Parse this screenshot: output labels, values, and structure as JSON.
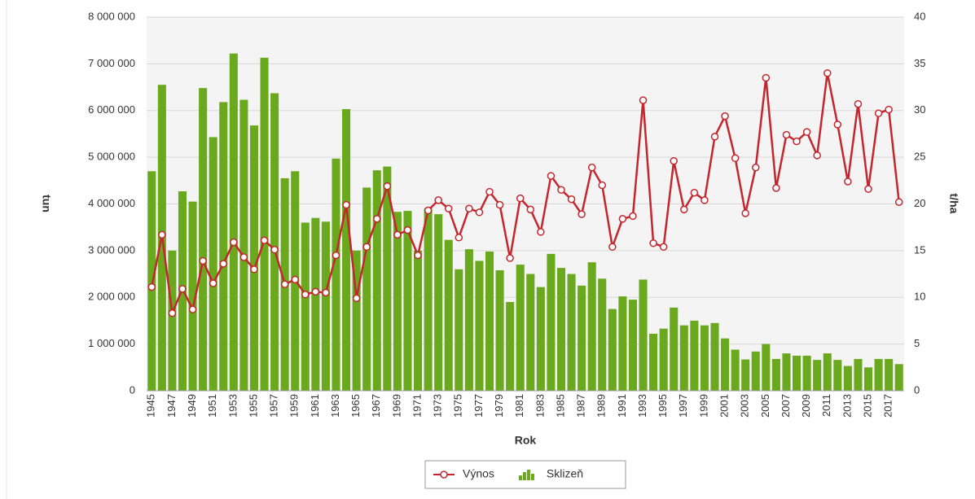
{
  "chart_data": {
    "type": "combo",
    "x_label": "Rok",
    "y_label": "tun",
    "y2_label": "t/ha",
    "categories": [
      "1945",
      null,
      "1947",
      null,
      "1949",
      null,
      "1951",
      null,
      "1953",
      null,
      "1955",
      null,
      "1957",
      null,
      "1959",
      null,
      "1961",
      null,
      "1963",
      null,
      "1965",
      null,
      "1967",
      null,
      "1969",
      null,
      "1971",
      null,
      "1973",
      null,
      "1975",
      null,
      "1977",
      null,
      "1979",
      null,
      "1981",
      null,
      "1983",
      null,
      "1985",
      null,
      "1987",
      null,
      "1989",
      null,
      "1991",
      null,
      "1993",
      null,
      "1995",
      null,
      "1997",
      null,
      "1999",
      null,
      "2001",
      null,
      "2003",
      null,
      "2005",
      null,
      "2007",
      null,
      "2009",
      null,
      "2011",
      null,
      "2013",
      null,
      "2015",
      null,
      "2017",
      null
    ],
    "series": [
      {
        "name": "Výnos",
        "type": "line",
        "axis": "y2",
        "color": "#c4262e",
        "values": [
          11.1,
          16.7,
          8.3,
          10.9,
          8.7,
          13.9,
          11.5,
          13.6,
          15.9,
          14.3,
          13.0,
          16.1,
          15.1,
          11.4,
          11.9,
          10.3,
          10.6,
          10.5,
          14.5,
          19.9,
          9.9,
          15.4,
          18.4,
          21.9,
          16.7,
          17.2,
          14.5,
          19.3,
          20.4,
          19.5,
          16.4,
          19.5,
          19.1,
          21.3,
          19.9,
          14.2,
          20.6,
          19.4,
          17.0,
          23.0,
          21.5,
          20.5,
          18.9,
          23.9,
          22.0,
          15.4,
          18.4,
          18.7,
          31.1,
          15.8,
          15.4,
          24.6,
          19.4,
          21.2,
          20.4,
          27.2,
          29.4,
          24.9,
          19.0,
          23.9,
          33.5,
          21.7,
          27.4,
          26.7,
          27.7,
          25.2,
          34.0,
          28.5,
          22.4,
          30.7,
          21.6,
          29.7,
          30.1,
          20.2
        ]
      },
      {
        "name": "Sklizeň",
        "type": "bar",
        "color": "#6aa81e",
        "values": [
          4700000,
          6550000,
          3000000,
          4270000,
          4050000,
          6480000,
          5430000,
          6180000,
          7220000,
          6230000,
          5680000,
          7130000,
          6370000,
          4550000,
          4700000,
          3600000,
          3700000,
          3620000,
          4970000,
          6030000,
          3000000,
          4350000,
          4720000,
          4800000,
          3830000,
          3850000,
          3000000,
          3900000,
          3780000,
          3230000,
          2600000,
          3030000,
          2780000,
          2980000,
          2580000,
          1900000,
          2700000,
          2500000,
          2220000,
          2930000,
          2630000,
          2500000,
          2250000,
          2750000,
          2400000,
          1750000,
          2020000,
          1950000,
          2380000,
          1220000,
          1330000,
          1780000,
          1400000,
          1500000,
          1400000,
          1450000,
          1120000,
          880000,
          670000,
          840000,
          1000000,
          680000,
          800000,
          750000,
          750000,
          660000,
          800000,
          660000,
          530000,
          680000,
          500000,
          680000,
          680000,
          570000
        ]
      }
    ],
    "ylim": [
      0,
      8000000
    ],
    "yticks": [
      0,
      {
        "value": 1000000,
        "label": "1 000 000"
      },
      {
        "value": 2000000,
        "label": "2 000 000"
      },
      {
        "value": 3000000,
        "label": "3 000 000"
      },
      {
        "value": 4000000,
        "label": "4 000 000"
      },
      {
        "value": 5000000,
        "label": "5 000 000"
      },
      {
        "value": 6000000,
        "label": "6 000 000"
      },
      {
        "value": 7000000,
        "label": "7 000 000"
      },
      {
        "value": 8000000,
        "label": "8 000 000"
      }
    ],
    "y2lim": [
      0,
      40
    ],
    "y2ticks": [
      0,
      5,
      10,
      15,
      20,
      25,
      30,
      35,
      40
    ],
    "grid": true
  }
}
